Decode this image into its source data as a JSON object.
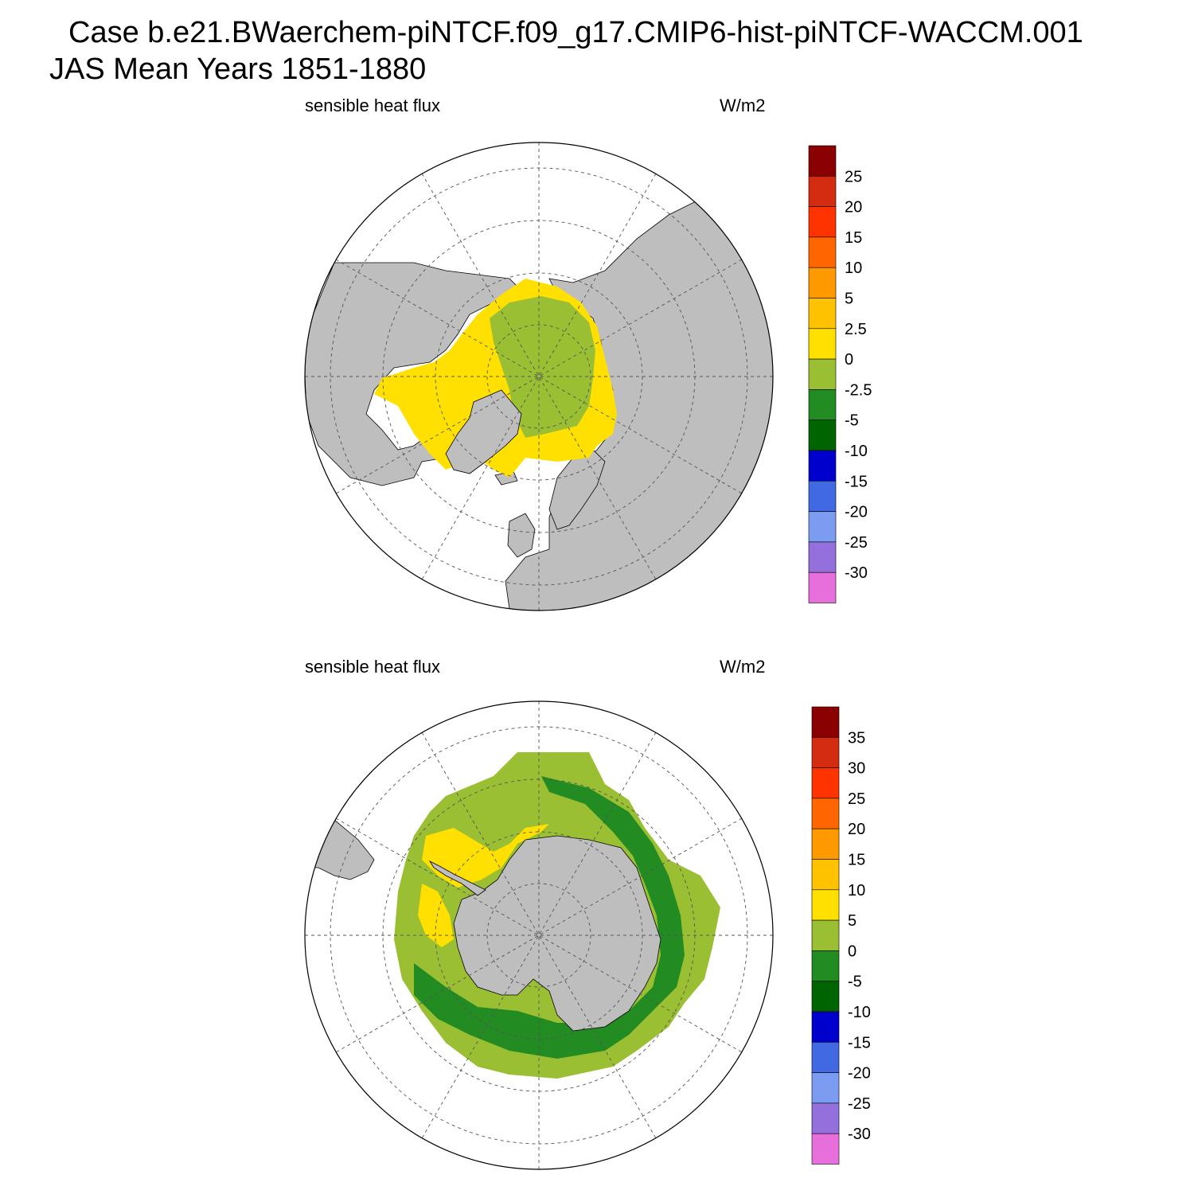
{
  "title": {
    "line1": "Case b.e21.BWaerchem-piNTCF.f09_g17.CMIP6-hist-piNTCF-WACCM.001",
    "line2": "JAS Mean   Years 1851-1880"
  },
  "panels": [
    {
      "id": "north",
      "variable": "sensible heat flux",
      "units": "W/m2",
      "colorbar": {
        "labels": [
          "25",
          "20",
          "15",
          "10",
          "5",
          "2.5",
          "0",
          "-2.5",
          "-5",
          "-10",
          "-15",
          "-20",
          "-25",
          "-30"
        ],
        "colors": [
          "#8b0000",
          "#d42c10",
          "#ff3300",
          "#ff6600",
          "#ff9900",
          "#ffc200",
          "#ffe000",
          "#9abf33",
          "#228b22",
          "#006400",
          "#0000cd",
          "#4169e1",
          "#7b9cf0",
          "#9370db",
          "#e76fdb"
        ]
      }
    },
    {
      "id": "south",
      "variable": "sensible heat flux",
      "units": "W/m2",
      "colorbar": {
        "labels": [
          "35",
          "30",
          "25",
          "20",
          "15",
          "10",
          "5",
          "0",
          "-5",
          "-10",
          "-15",
          "-20",
          "-25",
          "-30"
        ],
        "colors": [
          "#8b0000",
          "#d42c10",
          "#ff3300",
          "#ff6600",
          "#ff9900",
          "#ffc200",
          "#ffe000",
          "#9abf33",
          "#228b22",
          "#006400",
          "#0000cd",
          "#4169e1",
          "#7b9cf0",
          "#9370db",
          "#e76fdb"
        ]
      }
    }
  ],
  "style": {
    "land": "#bebebe",
    "grid": "#555555"
  }
}
